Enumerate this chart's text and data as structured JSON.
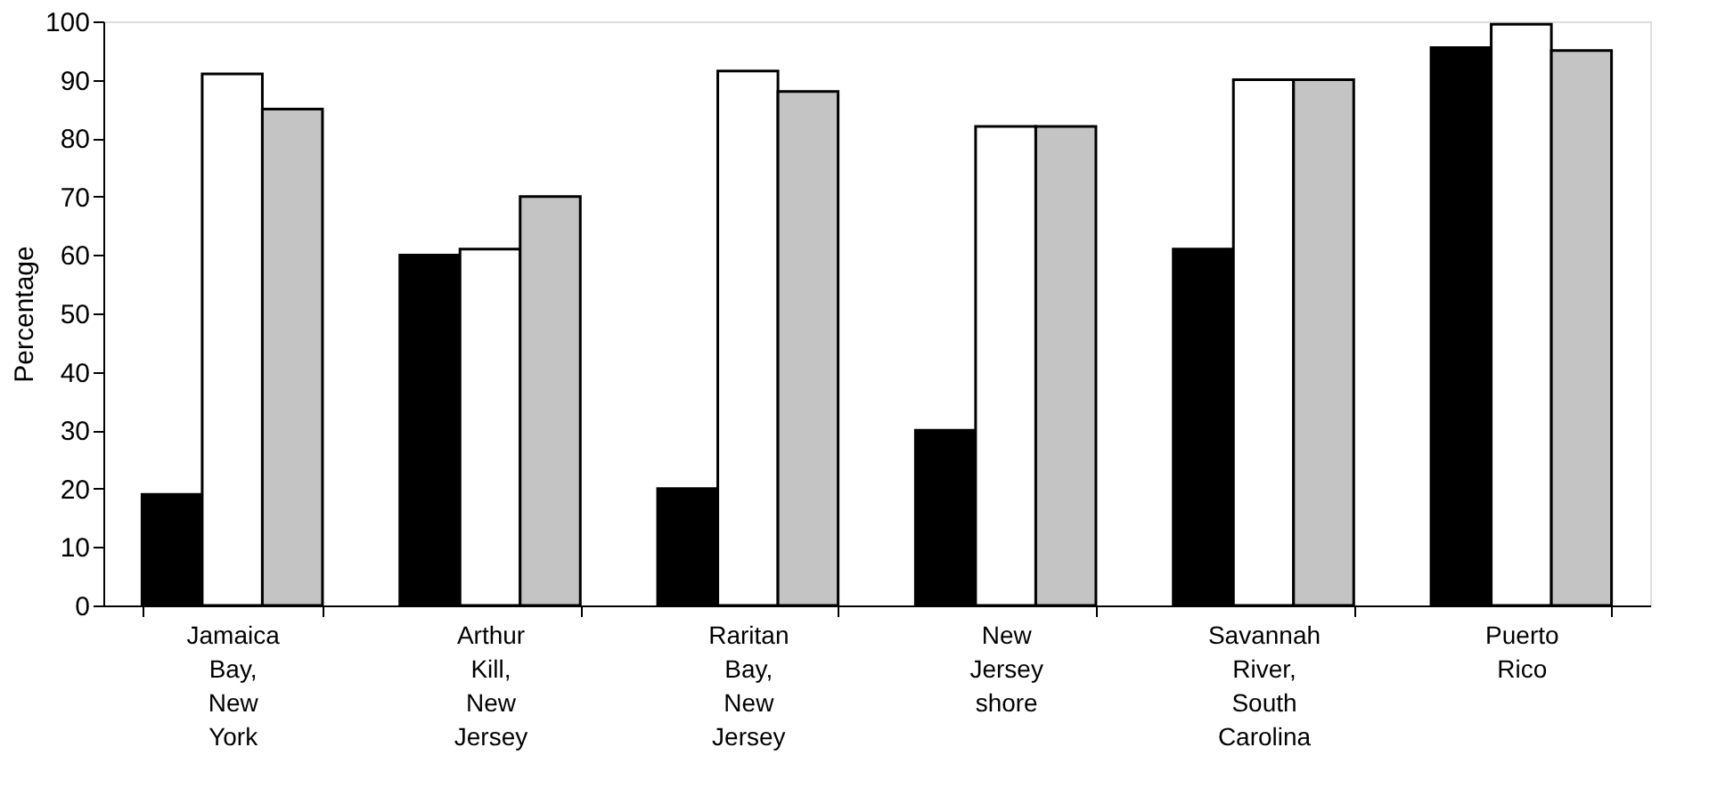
{
  "chart_data": {
    "type": "bar",
    "ylabel": "Percentage",
    "categories": [
      "Jamaica Bay, New York",
      "Arthur Kill, New Jersey",
      "Raritan Bay, New Jersey",
      "New Jersey shore",
      "Savannah River, South Carolina",
      "Puerto Rico"
    ],
    "series": [
      {
        "color": "#000000",
        "values": [
          19,
          60,
          20,
          30,
          61,
          95.5
        ]
      },
      {
        "color": "#ffffff",
        "values": [
          91,
          61,
          91.5,
          82,
          90,
          99.5
        ]
      },
      {
        "color": "#c4c4c4",
        "values": [
          85,
          70,
          88,
          82,
          90,
          95
        ]
      }
    ],
    "ylim": [
      0,
      100
    ],
    "yticks": [
      0,
      10,
      20,
      30,
      40,
      50,
      60,
      70,
      80,
      90,
      100
    ],
    "grid": false,
    "legend": false
  }
}
